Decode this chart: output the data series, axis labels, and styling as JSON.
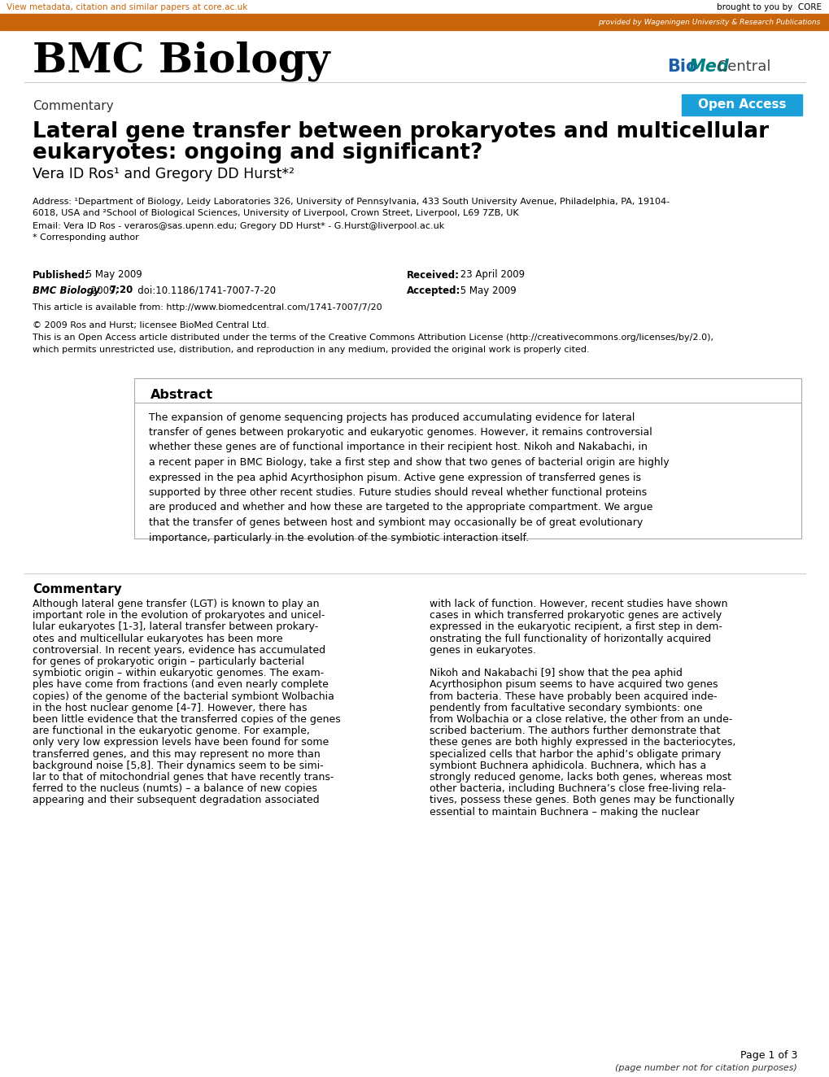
{
  "bg_color": "#ffffff",
  "top_bar_color": "#c8650a",
  "top_bar_text": "provided by Wageningen University & Research Publications",
  "core_link_text": "View metadata, citation and similar papers at core.ac.uk",
  "core_text": "brought to you by  CORE",
  "bmc_title": "BMC Biology",
  "section_label": "Commentary",
  "open_access_text": "Open Access",
  "open_access_bg": "#1a9fd8",
  "paper_title_line1": "Lateral gene transfer between prokaryotes and multicellular",
  "paper_title_line2": "eukaryotes: ongoing and significant?",
  "authors": "Vera ID Ros¹ and Gregory DD Hurst*²",
  "address_line1": "Address: ¹Department of Biology, Leidy Laboratories 326, University of Pennsylvania, 433 South University Avenue, Philadelphia, PA, 19104-",
  "address_line2": "6018, USA and ²School of Biological Sciences, University of Liverpool, Crown Street, Liverpool, L69 7ZB, UK",
  "email_line": "Email: Vera ID Ros - veraros@sas.upenn.edu; Gregory DD Hurst* - G.Hurst@liverpool.ac.uk",
  "corresponding": "* Corresponding author",
  "published_label": "Published:",
  "published_val": " 5 May 2009",
  "received_label": "Received:",
  "received_val": " 23 April 2009",
  "journal_ref": "BMC Biology",
  "journal_ref2": " 2009, ",
  "journal_ref3": "7:20",
  "journal_ref4": "   doi:10.1186/1741-7007-7-20",
  "accepted_label": "Accepted:",
  "accepted_val": " 5 May 2009",
  "url_line": "This article is available from: http://www.biomedcentral.com/1741-7007/7/20",
  "copyright_line1": "© 2009 Ros and Hurst; licensee BioMed Central Ltd.",
  "copyright_line2": "This is an Open Access article distributed under the terms of the Creative Commons Attribution License (http://creativecommons.org/licenses/by/2.0),",
  "copyright_line3": "which permits unrestricted use, distribution, and reproduction in any medium, provided the original work is properly cited.",
  "abstract_title": "Abstract",
  "abstract_lines": [
    "The expansion of genome sequencing projects has produced accumulating evidence for lateral",
    "transfer of genes between prokaryotic and eukaryotic genomes. However, it remains controversial",
    "whether these genes are of functional importance in their recipient host. Nikoh and Nakabachi, in",
    "a recent paper in BMC Biology, take a first step and show that two genes of bacterial origin are highly",
    "expressed in the pea aphid Acyrthosiphon pisum. Active gene expression of transferred genes is",
    "supported by three other recent studies. Future studies should reveal whether functional proteins",
    "are produced and whether and how these are targeted to the appropriate compartment. We argue",
    "that the transfer of genes between host and symbiont may occasionally be of great evolutionary",
    "importance, particularly in the evolution of the symbiotic interaction itself."
  ],
  "commentary_title": "Commentary",
  "col1_lines": [
    "Although lateral gene transfer (LGT) is known to play an",
    "important role in the evolution of prokaryotes and unicel-",
    "lular eukaryotes [1-3], lateral transfer between prokary-",
    "otes and multicellular eukaryotes has been more",
    "controversial. In recent years, evidence has accumulated",
    "for genes of prokaryotic origin – particularly bacterial",
    "symbiotic origin – within eukaryotic genomes. The exam-",
    "ples have come from fractions (and even nearly complete",
    "copies) of the genome of the bacterial symbiont Wolbachia",
    "in the host nuclear genome [4-7]. However, there has",
    "been little evidence that the transferred copies of the genes",
    "are functional in the eukaryotic genome. For example,",
    "only very low expression levels have been found for some",
    "transferred genes, and this may represent no more than",
    "background noise [5,8]. Their dynamics seem to be simi-",
    "lar to that of mitochondrial genes that have recently trans-",
    "ferred to the nucleus (numts) – a balance of new copies",
    "appearing and their subsequent degradation associated"
  ],
  "col2_lines": [
    "with lack of function. However, recent studies have shown",
    "cases in which transferred prokaryotic genes are actively",
    "expressed in the eukaryotic recipient, a first step in dem-",
    "onstrating the full functionality of horizontally acquired",
    "genes in eukaryotes.",
    "",
    "Nikoh and Nakabachi [9] show that the pea aphid",
    "Acyrthosiphon pisum seems to have acquired two genes",
    "from bacteria. These have probably been acquired inde-",
    "pendently from facultative secondary symbionts: one",
    "from Wolbachia or a close relative, the other from an unde-",
    "scribed bacterium. The authors further demonstrate that",
    "these genes are both highly expressed in the bacteriocytes,",
    "specialized cells that harbor the aphid’s obligate primary",
    "symbiont Buchnera aphidicola. Buchnera, which has a",
    "strongly reduced genome, lacks both genes, whereas most",
    "other bacteria, including Buchnera’s close free-living rela-",
    "tives, possess these genes. Both genes may be functionally",
    "essential to maintain Buchnera – making the nuclear"
  ],
  "page_footer": "Page 1 of 3",
  "page_footer2": "(page number not for citation purposes)"
}
